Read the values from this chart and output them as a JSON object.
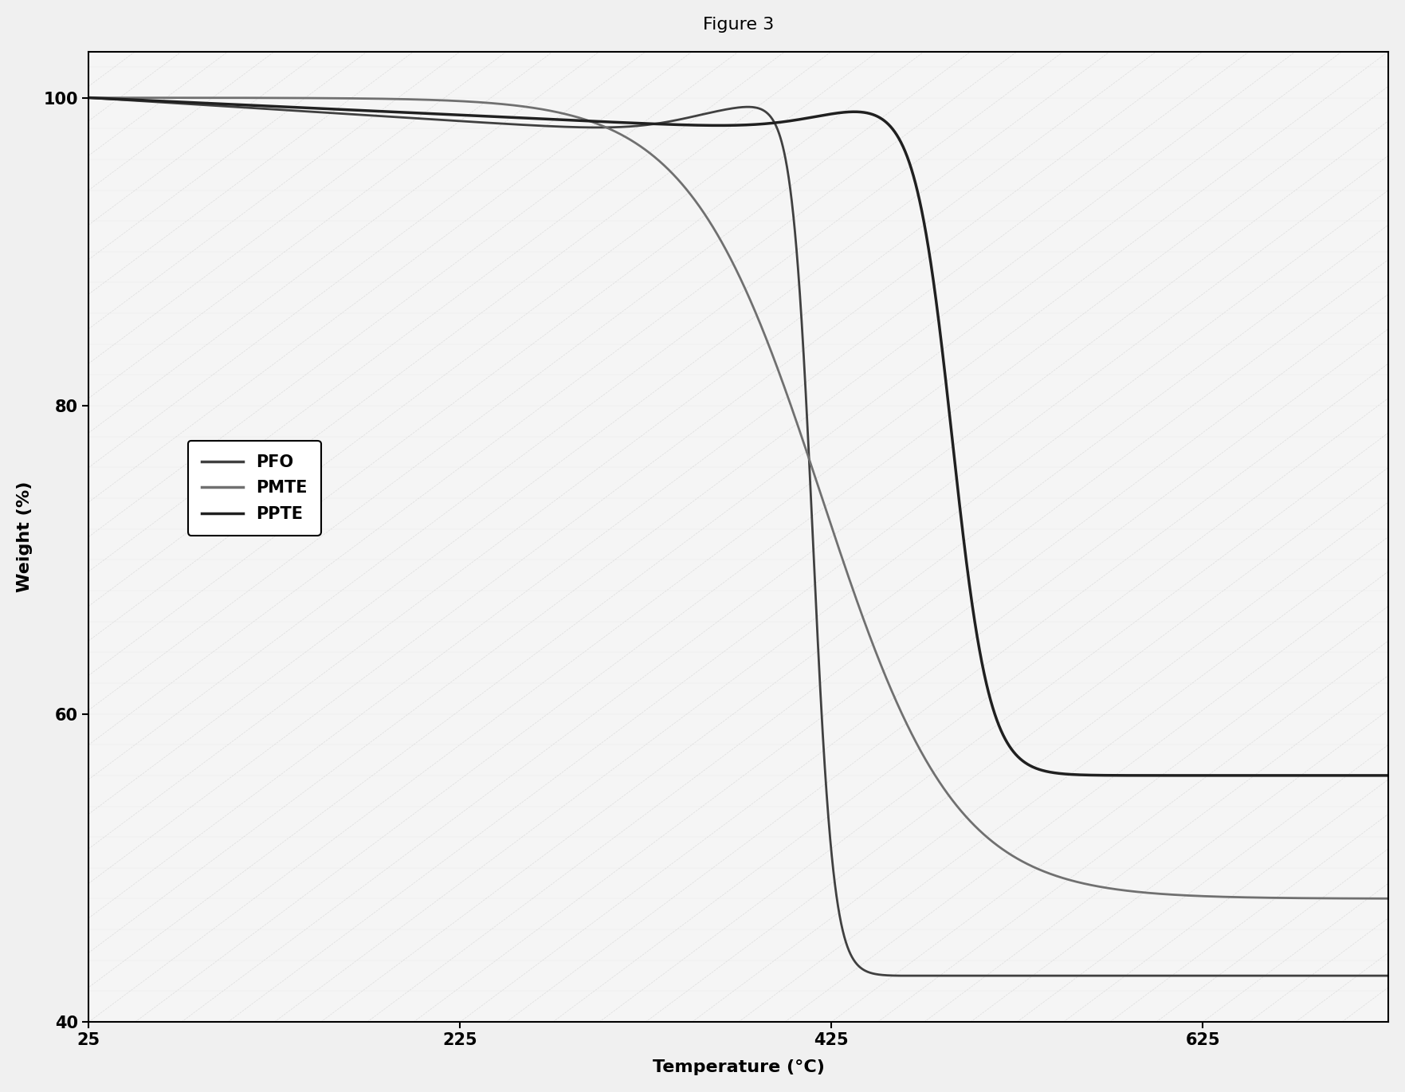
{
  "title": "Figure 3",
  "xlabel": "Temperature (°C)",
  "ylabel": "Weight (%)",
  "xlim": [
    25,
    725
  ],
  "ylim": [
    40,
    103
  ],
  "xticks": [
    25,
    225,
    425,
    625
  ],
  "yticks": [
    40,
    60,
    80,
    100
  ],
  "background_color": "#f0f0f0",
  "plot_bg_color": "#f5f5f5",
  "series": [
    {
      "label": "PFO",
      "color": "#404040",
      "linewidth": 2.0
    },
    {
      "label": "PMTE",
      "color": "#707070",
      "linewidth": 2.0
    },
    {
      "label": "PPTE",
      "color": "#202020",
      "linewidth": 2.5
    }
  ],
  "title_fontsize": 16,
  "axis_label_fontsize": 16,
  "tick_fontsize": 15,
  "legend_fontsize": 15,
  "figsize": [
    17.63,
    13.7
  ],
  "dpi": 100
}
